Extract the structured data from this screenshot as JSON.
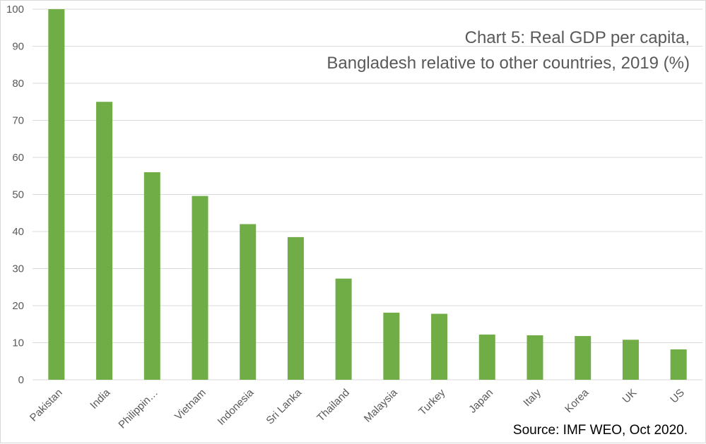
{
  "chart_data": {
    "type": "bar",
    "title_lines": [
      "Chart 5: Real GDP per capita,",
      "Bangladesh relative to other countries, 2019 (%)"
    ],
    "source": "Source: IMF WEO, Oct 2020.",
    "categories": [
      "Pakistan",
      "India",
      "Philippin…",
      "Vietnam",
      "Indonesia",
      "Sri Lanka",
      "Thailand",
      "Malaysia",
      "Turkey",
      "Japan",
      "Italy",
      "Korea",
      "UK",
      "US"
    ],
    "values": [
      100,
      75,
      56,
      49.6,
      42,
      38.5,
      27.3,
      18.1,
      17.8,
      12.2,
      12,
      11.8,
      10.8,
      8.2
    ],
    "ylim": [
      0,
      100
    ],
    "yticks": [
      0,
      10,
      20,
      30,
      40,
      50,
      60,
      70,
      80,
      90,
      100
    ],
    "grid": true,
    "bar_color": "#70ad47",
    "grid_color": "#d9d9d9"
  }
}
